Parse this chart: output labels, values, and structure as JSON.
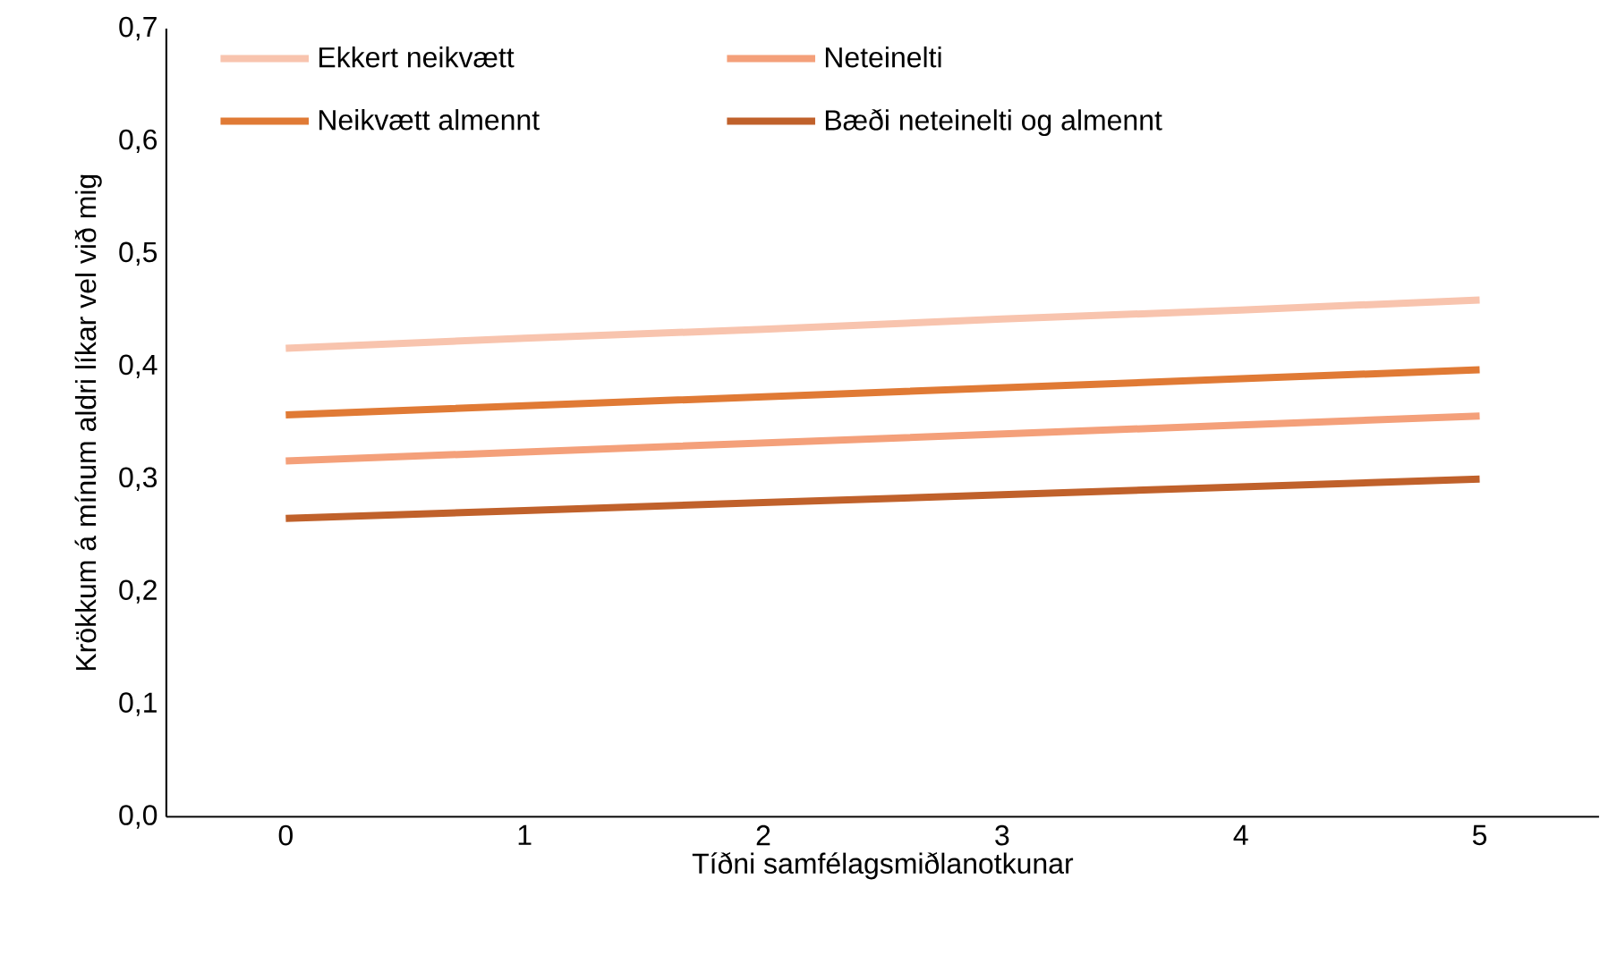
{
  "chart_data": {
    "type": "line",
    "xlabel": "Tíðni samfélagsmiðlanotkunar",
    "ylabel": "Krökkum á mínum aldri líkar vel við mig",
    "x": [
      0,
      1,
      2,
      3,
      4,
      5
    ],
    "xlim": [
      -0.5,
      5.5
    ],
    "xticks": [
      0,
      1,
      2,
      3,
      4,
      5
    ],
    "ylim": [
      0,
      0.7
    ],
    "yticks": [
      {
        "value": 0,
        "label": "0,0"
      },
      {
        "value": 0.1,
        "label": "0,1"
      },
      {
        "value": 0.2,
        "label": "0,2"
      },
      {
        "value": 0.3,
        "label": "0,3"
      },
      {
        "value": 0.4,
        "label": "0,4"
      },
      {
        "value": 0.5,
        "label": "0,5"
      },
      {
        "value": 0.6,
        "label": "0,6"
      },
      {
        "value": 0.7,
        "label": "0,7"
      }
    ],
    "grid": false,
    "legend": "top",
    "marker": "none",
    "line_style": "solid",
    "series": [
      {
        "name": "Ekkert neikvætt",
        "color": "#f8c4ae",
        "values": [
          0.416,
          0.425,
          0.433,
          0.442,
          0.45,
          0.459
        ]
      },
      {
        "name": "Neteinelti",
        "color": "#f4a07a",
        "values": [
          0.316,
          0.324,
          0.332,
          0.34,
          0.348,
          0.356
        ]
      },
      {
        "name": "Neikvætt almennt",
        "color": "#e07a35",
        "values": [
          0.357,
          0.365,
          0.373,
          0.381,
          0.389,
          0.397
        ]
      },
      {
        "name": "Bæði neteinelti og almennt",
        "color": "#c0612b",
        "values": [
          0.265,
          0.272,
          0.279,
          0.286,
          0.293,
          0.3
        ]
      }
    ]
  }
}
